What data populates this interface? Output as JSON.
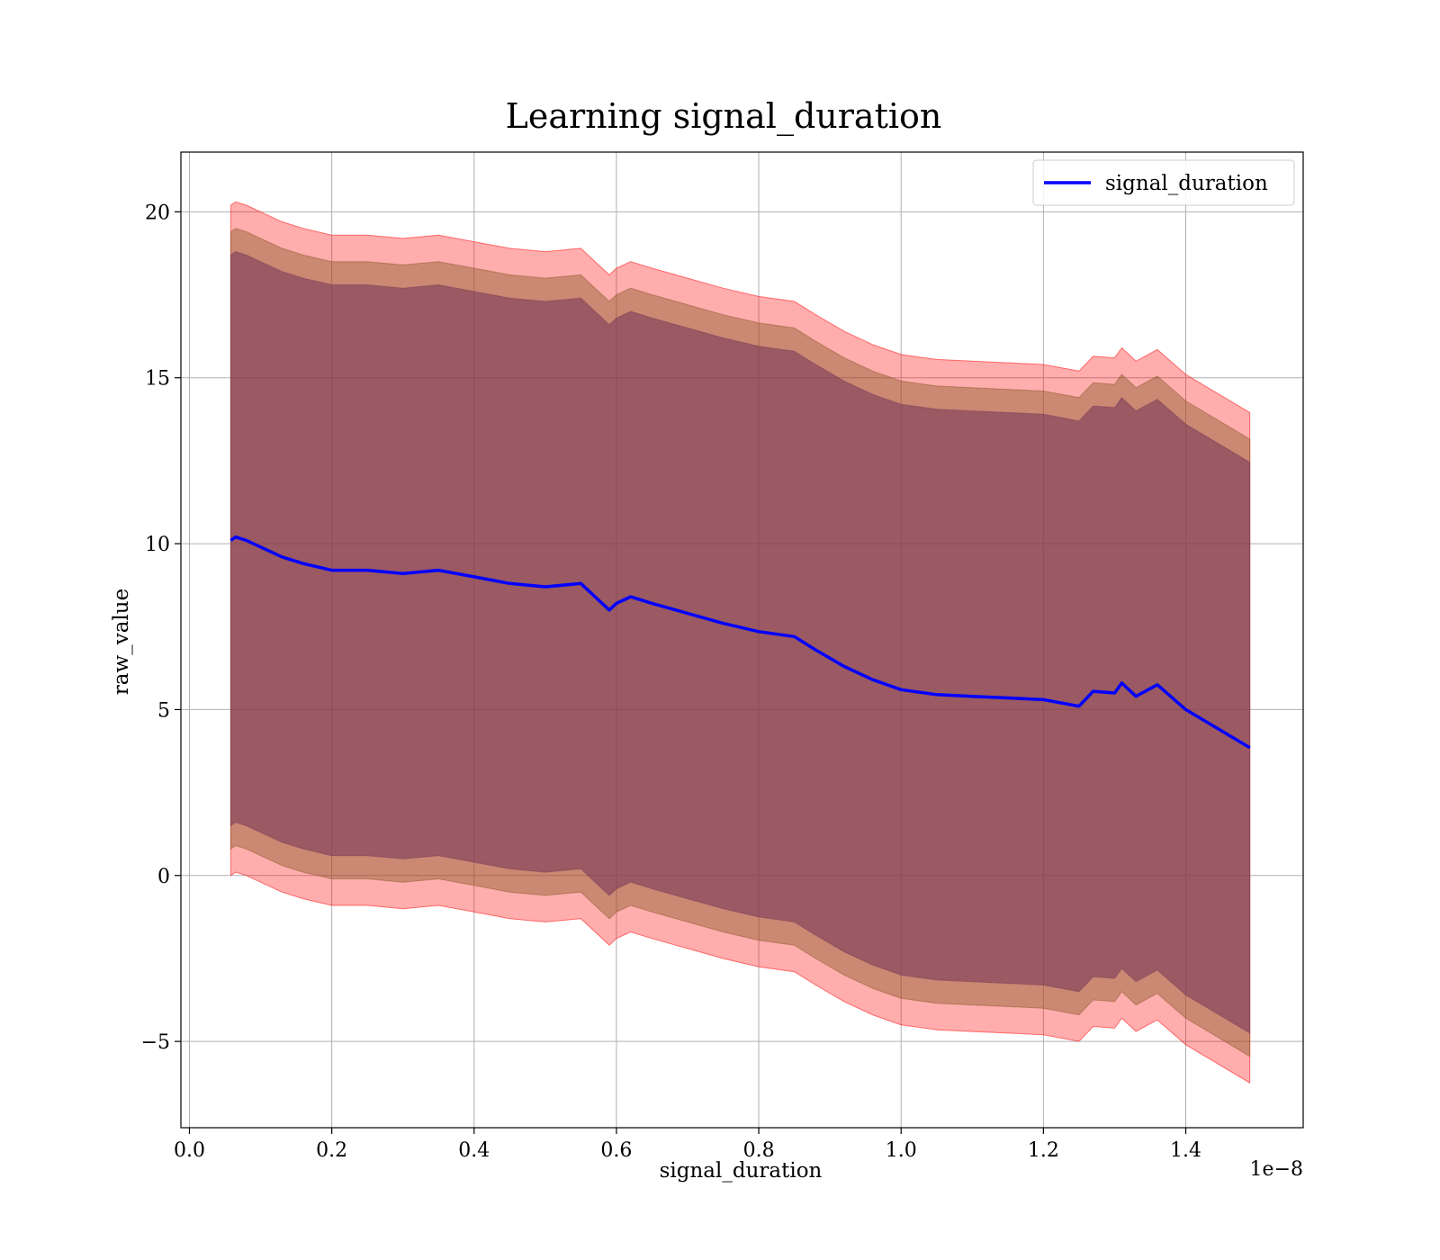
{
  "chart_data": {
    "type": "line",
    "title": "Learning signal_duration",
    "xlabel": "signal_duration",
    "ylabel": "raw_value",
    "x_offset_text": "1e−8",
    "xlim": [
      -0.012,
      1.565
    ],
    "ylim": [
      -7.6,
      21.8
    ],
    "x_ticks": [
      0.0,
      0.2,
      0.4,
      0.6,
      0.8,
      1.0,
      1.2,
      1.4
    ],
    "x_tick_labels": [
      "0.0",
      "0.2",
      "0.4",
      "0.6",
      "0.8",
      "1.0",
      "1.2",
      "1.4"
    ],
    "y_ticks": [
      -5,
      0,
      5,
      10,
      15,
      20
    ],
    "y_tick_labels": [
      "−5",
      "0",
      "5",
      "10",
      "15",
      "20"
    ],
    "grid": true,
    "legend": {
      "position": "top-right",
      "entries": [
        "signal_duration"
      ]
    },
    "colors": {
      "line": "#0000ff",
      "band_outer": "#ff0000",
      "band_middle": "#8b5a2b",
      "band_inner": "#7a3b5a"
    },
    "series": [
      {
        "name": "signal_duration",
        "x": [
          0.058,
          0.065,
          0.08,
          0.1,
          0.13,
          0.16,
          0.2,
          0.25,
          0.3,
          0.35,
          0.4,
          0.45,
          0.5,
          0.55,
          0.57,
          0.59,
          0.6,
          0.62,
          0.65,
          0.7,
          0.75,
          0.8,
          0.85,
          0.88,
          0.92,
          0.96,
          1.0,
          1.05,
          1.1,
          1.15,
          1.2,
          1.25,
          1.27,
          1.3,
          1.31,
          1.33,
          1.36,
          1.4,
          1.49
        ],
        "mean": [
          10.1,
          10.2,
          10.1,
          9.9,
          9.6,
          9.4,
          9.2,
          9.2,
          9.1,
          9.2,
          9.0,
          8.8,
          8.7,
          8.8,
          8.4,
          8.0,
          8.2,
          8.4,
          8.2,
          7.9,
          7.6,
          7.35,
          7.2,
          6.8,
          6.3,
          5.9,
          5.6,
          5.45,
          5.4,
          5.35,
          5.3,
          5.1,
          5.55,
          5.5,
          5.8,
          5.4,
          5.75,
          5.0,
          3.85
        ]
      }
    ],
    "bands": [
      {
        "level": "outer",
        "offset": 10.1
      },
      {
        "level": "middle",
        "offset": 9.3
      },
      {
        "level": "inner",
        "offset": 8.6
      }
    ]
  }
}
